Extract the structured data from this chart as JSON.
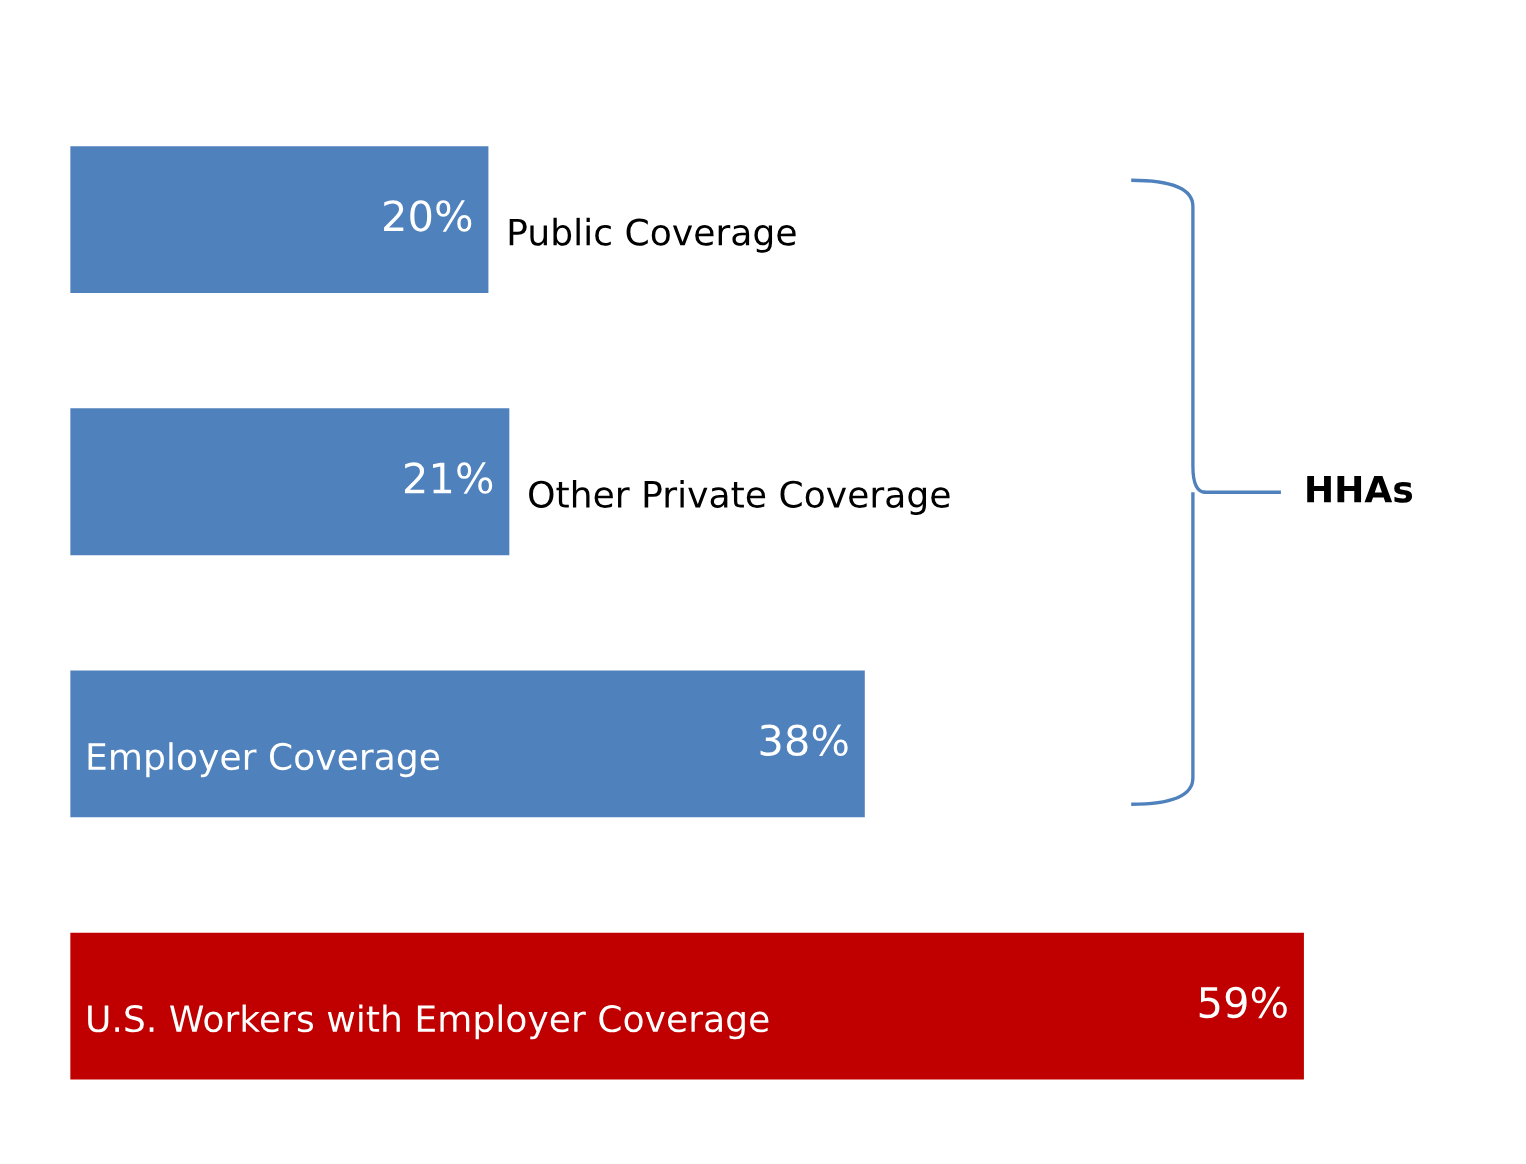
{
  "chart_data": {
    "type": "bar",
    "orientation": "horizontal",
    "categories": [
      "Public Coverage",
      "Other Private Coverage",
      "Employer Coverage",
      "U.S. Workers with Employer Coverage"
    ],
    "values": [
      20,
      21,
      38,
      59
    ],
    "colors": [
      "#4f81bd",
      "#4f81bd",
      "#4f81bd",
      "#c00000"
    ],
    "value_labels": [
      "20%",
      "21%",
      "38%",
      "59%"
    ],
    "annotations": [
      "HHAs"
    ]
  }
}
